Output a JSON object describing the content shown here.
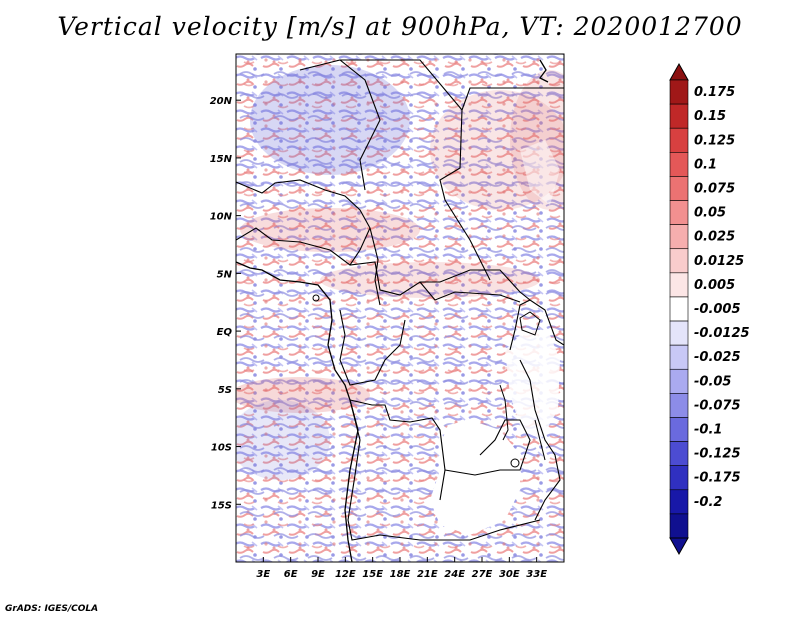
{
  "title": "Vertical velocity [m/s] at 900hPa, VT: 2020012700",
  "credit": "GrADS: IGES/COLA",
  "map": {
    "variable": "Vertical velocity",
    "units": "m/s",
    "level": "900hPa",
    "valid_time": "2020012700",
    "lon_range": [
      0,
      36
    ],
    "lat_range": [
      -20,
      24
    ],
    "lat_ticks": [
      {
        "value": 20,
        "label": "20N"
      },
      {
        "value": 15,
        "label": "15N"
      },
      {
        "value": 10,
        "label": "10N"
      },
      {
        "value": 5,
        "label": "5N"
      },
      {
        "value": 0,
        "label": "EQ"
      },
      {
        "value": -5,
        "label": "5S"
      },
      {
        "value": -10,
        "label": "10S"
      },
      {
        "value": -15,
        "label": "15S"
      }
    ],
    "lon_ticks": [
      {
        "value": 3,
        "label": "3E"
      },
      {
        "value": 6,
        "label": "6E"
      },
      {
        "value": 9,
        "label": "9E"
      },
      {
        "value": 12,
        "label": "12E"
      },
      {
        "value": 15,
        "label": "15E"
      },
      {
        "value": 18,
        "label": "18E"
      },
      {
        "value": 21,
        "label": "21E"
      },
      {
        "value": 24,
        "label": "24E"
      },
      {
        "value": 27,
        "label": "27E"
      },
      {
        "value": 30,
        "label": "30E"
      },
      {
        "value": 33,
        "label": "33E"
      }
    ]
  },
  "colorbar": {
    "levels": [
      {
        "label": "0.175",
        "color": "#a01818"
      },
      {
        "label": "0.15",
        "color": "#c02828"
      },
      {
        "label": "0.125",
        "color": "#d84040"
      },
      {
        "label": "0.1",
        "color": "#e45858"
      },
      {
        "label": "0.075",
        "color": "#ec7272"
      },
      {
        "label": "0.05",
        "color": "#f29090"
      },
      {
        "label": "0.025",
        "color": "#f6aeae"
      },
      {
        "label": "0.0125",
        "color": "#f9cccc"
      },
      {
        "label": "0.005",
        "color": "#fce6e6"
      },
      {
        "label": "-0.005",
        "color": "#ffffff"
      },
      {
        "label": "-0.0125",
        "color": "#e4e4fa"
      },
      {
        "label": "-0.025",
        "color": "#c8c8f6"
      },
      {
        "label": "-0.05",
        "color": "#aaaaf0"
      },
      {
        "label": "-0.075",
        "color": "#8c8ce8"
      },
      {
        "label": "-0.1",
        "color": "#6a6ade"
      },
      {
        "label": "-0.125",
        "color": "#4c4cd2"
      },
      {
        "label": "-0.175",
        "color": "#3030c0"
      },
      {
        "label": "-0.2",
        "color": "#1818a8"
      }
    ],
    "top_color": "#8a1010",
    "bottom_color": "#101090"
  }
}
